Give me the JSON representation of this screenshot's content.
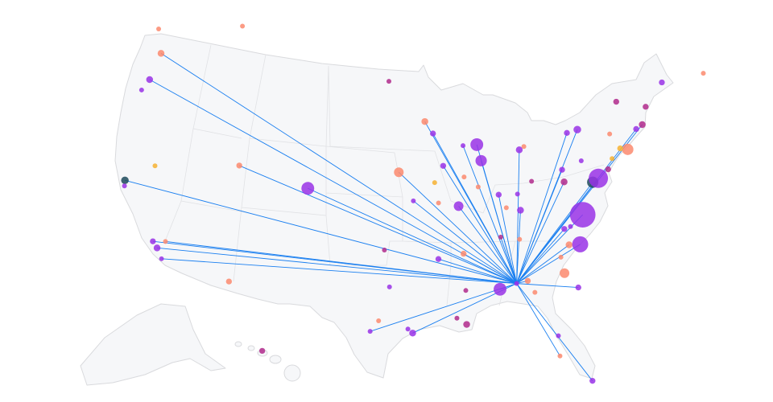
{
  "map": {
    "route_color": "#1a7ff0",
    "hub": {
      "lon": -85.8,
      "lat": 32.5,
      "size": 1,
      "color": "#9932e6"
    },
    "airports": [
      {
        "lon": -122.3,
        "lat": 47.4,
        "size": 2,
        "color": "#fb8a6e",
        "route": true
      },
      {
        "lon": -122.7,
        "lat": 45.3,
        "size": 2,
        "color": "#9932e6",
        "route": true
      },
      {
        "lon": -123.2,
        "lat": 44.4,
        "size": 1,
        "color": "#9932e6"
      },
      {
        "lon": -123.3,
        "lat": 49.1,
        "size": 1,
        "color": "#fb8a6e"
      },
      {
        "lon": -114.2,
        "lat": 50.8,
        "size": 1,
        "color": "#fb8a6e"
      },
      {
        "lon": -122.3,
        "lat": 37.7,
        "size": 2.5,
        "color": "#1d4a5c",
        "route": true
      },
      {
        "lon": -122.2,
        "lat": 37.3,
        "size": 1,
        "color": "#9932e6"
      },
      {
        "lon": -119.9,
        "lat": 39.3,
        "size": 1,
        "color": "#f6b132"
      },
      {
        "lon": -111.9,
        "lat": 40.6,
        "size": 1.5,
        "color": "#fb8a6e",
        "route": true
      },
      {
        "lon": -105.0,
        "lat": 39.6,
        "size": 7,
        "color": "#9932e6",
        "route": true
      },
      {
        "lon": -118.4,
        "lat": 33.9,
        "size": 1.5,
        "color": "#9932e6",
        "route": true
      },
      {
        "lon": -117.3,
        "lat": 34.1,
        "size": 1,
        "color": "#fb8a6e",
        "route": true
      },
      {
        "lon": -117.9,
        "lat": 33.5,
        "size": 2,
        "color": "#9932e6",
        "route": true
      },
      {
        "lon": -117.3,
        "lat": 32.8,
        "size": 1,
        "color": "#9932e6",
        "route": true
      },
      {
        "lon": -111.1,
        "lat": 32.1,
        "size": 1.5,
        "color": "#fb8a6e"
      },
      {
        "lon": -97.3,
        "lat": 47.8,
        "size": 1,
        "color": "#b02a8c"
      },
      {
        "lon": -93.5,
        "lat": 44.8,
        "size": 2,
        "color": "#fb8a6e",
        "route": true
      },
      {
        "lon": -92.7,
        "lat": 43.9,
        "size": 1.5,
        "color": "#9932e6",
        "route": true
      },
      {
        "lon": -96.2,
        "lat": 41.1,
        "size": 4,
        "color": "#fb8a6e",
        "route": true
      },
      {
        "lon": -91.8,
        "lat": 41.5,
        "size": 1.5,
        "color": "#9932e6",
        "route": true
      },
      {
        "lon": -89.7,
        "lat": 42.9,
        "size": 1,
        "color": "#9932e6",
        "route": true
      },
      {
        "lon": -88.3,
        "lat": 42.9,
        "size": 7,
        "color": "#9932e6",
        "route": true
      },
      {
        "lon": -88.0,
        "lat": 41.7,
        "size": 5.5,
        "color": "#9932e6",
        "route": true
      },
      {
        "lon": -89.8,
        "lat": 40.6,
        "size": 1,
        "color": "#fb8a6e"
      },
      {
        "lon": -92.7,
        "lat": 40.3,
        "size": 1,
        "color": "#f6b132"
      },
      {
        "lon": -94.8,
        "lat": 39.0,
        "size": 1,
        "color": "#9932e6",
        "route": true
      },
      {
        "lon": -92.4,
        "lat": 38.8,
        "size": 1,
        "color": "#fb8a6e"
      },
      {
        "lon": -90.5,
        "lat": 38.5,
        "size": 4,
        "color": "#9932e6",
        "route": true
      },
      {
        "lon": -88.5,
        "lat": 39.8,
        "size": 1,
        "color": "#fb8a6e"
      },
      {
        "lon": -84.1,
        "lat": 42.2,
        "size": 2,
        "color": "#9932e6",
        "route": true
      },
      {
        "lon": -83.6,
        "lat": 42.4,
        "size": 1,
        "color": "#fb8a6e"
      },
      {
        "lon": -86.6,
        "lat": 39.1,
        "size": 1.5,
        "color": "#9932e6",
        "route": true
      },
      {
        "lon": -84.7,
        "lat": 37.8,
        "size": 2,
        "color": "#9932e6",
        "route": true
      },
      {
        "lon": -84.8,
        "lat": 39.0,
        "size": 1,
        "color": "#9932e6"
      },
      {
        "lon": -83.3,
        "lat": 39.8,
        "size": 1,
        "color": "#b02a8c"
      },
      {
        "lon": -86.0,
        "lat": 38.1,
        "size": 1,
        "color": "#fb8a6e"
      },
      {
        "lon": -86.8,
        "lat": 36.0,
        "size": 1,
        "color": "#b02a8c",
        "route": true
      },
      {
        "lon": -85.1,
        "lat": 35.7,
        "size": 1,
        "color": "#fb8a6e"
      },
      {
        "lon": -90.3,
        "lat": 35.0,
        "size": 1.5,
        "color": "#fb8a6e",
        "route": true
      },
      {
        "lon": -92.6,
        "lat": 34.7,
        "size": 1.5,
        "color": "#9932e6",
        "route": true
      },
      {
        "lon": -97.5,
        "lat": 35.4,
        "size": 1,
        "color": "#b02a8c"
      },
      {
        "lon": -97.0,
        "lat": 32.7,
        "size": 1,
        "color": "#9932e6"
      },
      {
        "lon": -90.3,
        "lat": 32.3,
        "size": 1,
        "color": "#b02a8c"
      },
      {
        "lon": -97.9,
        "lat": 30.2,
        "size": 1,
        "color": "#fb8a6e"
      },
      {
        "lon": -98.6,
        "lat": 29.4,
        "size": 1,
        "color": "#9932e6",
        "route": true
      },
      {
        "lon": -95.4,
        "lat": 29.6,
        "size": 1,
        "color": "#9932e6"
      },
      {
        "lon": -95.0,
        "lat": 29.3,
        "size": 2,
        "color": "#9932e6",
        "route": true
      },
      {
        "lon": -91.2,
        "lat": 30.3,
        "size": 1,
        "color": "#b02a8c"
      },
      {
        "lon": -90.4,
        "lat": 29.8,
        "size": 2,
        "color": "#b02a8c"
      },
      {
        "lon": -87.3,
        "lat": 32.2,
        "size": 7,
        "color": "#9932e6",
        "route": true
      },
      {
        "lon": -84.8,
        "lat": 32.6,
        "size": 1.5,
        "color": "#fb8a6e",
        "route": true
      },
      {
        "lon": -84.3,
        "lat": 31.7,
        "size": 1,
        "color": "#fb8a6e"
      },
      {
        "lon": -82.8,
        "lat": 28.3,
        "size": 1,
        "color": "#9932e6"
      },
      {
        "lon": -82.9,
        "lat": 26.8,
        "size": 1,
        "color": "#fb8a6e",
        "route": true
      },
      {
        "lon": -80.6,
        "lat": 24.6,
        "size": 1.5,
        "color": "#9932e6",
        "route": true
      },
      {
        "lon": -80.5,
        "lat": 31.6,
        "size": 1.5,
        "color": "#9932e6",
        "route": true
      },
      {
        "lon": -81.5,
        "lat": 32.8,
        "size": 4,
        "color": "#fb8a6e"
      },
      {
        "lon": -81.6,
        "lat": 34.0,
        "size": 1,
        "color": "#fb8a6e"
      },
      {
        "lon": -80.7,
        "lat": 34.8,
        "size": 2,
        "color": "#fb8a6e",
        "route": true
      },
      {
        "lon": -79.7,
        "lat": 34.7,
        "size": 11,
        "color": "#9932e6",
        "route": true
      },
      {
        "lon": -79.0,
        "lat": 36.8,
        "size": 28,
        "color": "#9932e6",
        "route": true
      },
      {
        "lon": -80.9,
        "lat": 36.0,
        "size": 1.5,
        "color": "#9932e6",
        "route": true
      },
      {
        "lon": -80.3,
        "lat": 36.1,
        "size": 1,
        "color": "#9932e6"
      },
      {
        "lon": -80.2,
        "lat": 40.3,
        "size": 1.5,
        "color": "#9932e6",
        "route": true
      },
      {
        "lon": -80.2,
        "lat": 39.4,
        "size": 2,
        "color": "#b02a8c",
        "route": true
      },
      {
        "lon": -79.1,
        "lat": 42.9,
        "size": 1.5,
        "color": "#9932e6",
        "route": true
      },
      {
        "lon": -78.0,
        "lat": 43.0,
        "size": 2.5,
        "color": "#9932e6",
        "route": true
      },
      {
        "lon": -78.2,
        "lat": 40.7,
        "size": 1,
        "color": "#9932e6"
      },
      {
        "lon": -74.9,
        "lat": 42.2,
        "size": 1,
        "color": "#fb8a6e"
      },
      {
        "lon": -73.5,
        "lat": 44.4,
        "size": 1.5,
        "color": "#b02a8c"
      },
      {
        "lon": -70.7,
        "lat": 43.5,
        "size": 1.5,
        "color": "#b02a8c"
      },
      {
        "lon": -68.4,
        "lat": 44.9,
        "size": 1.5,
        "color": "#9932e6"
      },
      {
        "lon": -64.0,
        "lat": 44.6,
        "size": 1,
        "color": "#fb8a6e"
      },
      {
        "lon": -77.5,
        "lat": 39.0,
        "size": 5.5,
        "color": "#1d4a5c",
        "route": true
      },
      {
        "lon": -76.9,
        "lat": 39.2,
        "size": 16,
        "color": "#9932e6",
        "route": true
      },
      {
        "lon": -73.5,
        "lat": 40.8,
        "size": 5.5,
        "color": "#fb8a6e"
      },
      {
        "lon": -74.2,
        "lat": 41.0,
        "size": 1.5,
        "color": "#f6b132"
      },
      {
        "lon": -75.2,
        "lat": 40.4,
        "size": 1,
        "color": "#f6b132"
      },
      {
        "lon": -71.5,
        "lat": 42.3,
        "size": 2,
        "color": "#b02a8c",
        "route": true
      },
      {
        "lon": -72.2,
        "lat": 42.1,
        "size": 1.5,
        "color": "#9932e6",
        "route": true
      },
      {
        "lon": -75.8,
        "lat": 39.7,
        "size": 1.5,
        "color": "#b02a8c"
      },
      {
        "lon": -157.9,
        "lat": 21.3,
        "size": 1.5,
        "color": "#b02a8c"
      }
    ]
  }
}
